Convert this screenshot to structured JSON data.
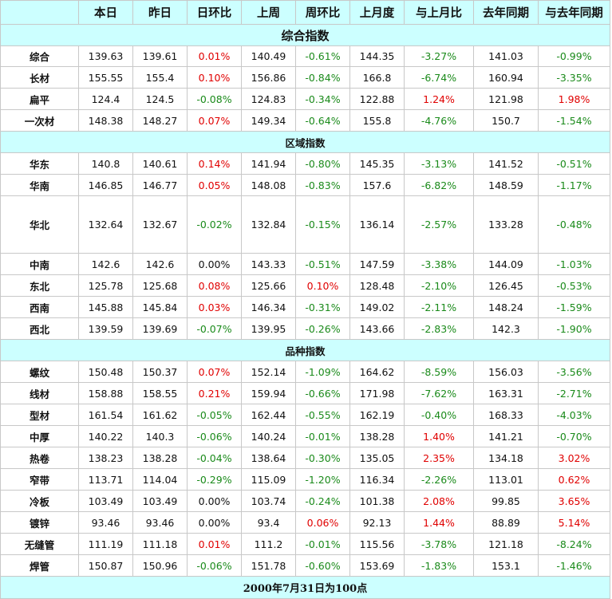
{
  "headers": [
    "",
    "本日",
    "昨日",
    "日环比",
    "上周",
    "周环比",
    "上月度",
    "与上月比",
    "去年同期",
    "与去年同期"
  ],
  "sections": [
    {
      "title": "综合指数",
      "size": "big",
      "rows": [
        {
          "name": "综合",
          "h": 26,
          "values": [
            "139.63",
            "139.61",
            "0.01%",
            "140.49",
            "-0.61%",
            "144.35",
            "-3.27%",
            "141.03",
            "-0.99%"
          ]
        },
        {
          "name": "长材",
          "h": 27,
          "values": [
            "155.55",
            "155.4",
            "0.10%",
            "156.86",
            "-0.84%",
            "166.8",
            "-6.74%",
            "160.94",
            "-3.35%"
          ]
        },
        {
          "name": "扁平",
          "h": 27,
          "values": [
            "124.4",
            "124.5",
            "-0.08%",
            "124.83",
            "-0.34%",
            "122.88",
            "1.24%",
            "121.98",
            "1.98%"
          ]
        },
        {
          "name": "一次材",
          "h": 27,
          "values": [
            "148.38",
            "148.27",
            "0.07%",
            "149.34",
            "-0.64%",
            "155.8",
            "-4.76%",
            "150.7",
            "-1.54%"
          ]
        }
      ]
    },
    {
      "title": "区域指数",
      "size": "small",
      "rows": [
        {
          "name": "华东",
          "h": 27,
          "values": [
            "140.8",
            "140.61",
            "0.14%",
            "141.94",
            "-0.80%",
            "145.35",
            "-3.13%",
            "141.52",
            "-0.51%"
          ]
        },
        {
          "name": "华南",
          "h": 27,
          "values": [
            "146.85",
            "146.77",
            "0.05%",
            "148.08",
            "-0.83%",
            "157.6",
            "-6.82%",
            "148.59",
            "-1.17%"
          ]
        },
        {
          "name": "华北",
          "h": 72,
          "values": [
            "132.64",
            "132.67",
            "-0.02%",
            "132.84",
            "-0.15%",
            "136.14",
            "-2.57%",
            "133.28",
            "-0.48%"
          ]
        },
        {
          "name": "中南",
          "h": 27,
          "values": [
            "142.6",
            "142.6",
            "0.00%",
            "143.33",
            "-0.51%",
            "147.59",
            "-3.38%",
            "144.09",
            "-1.03%"
          ]
        },
        {
          "name": "东北",
          "h": 27,
          "values": [
            "125.78",
            "125.68",
            "0.08%",
            "125.66",
            "0.10%",
            "128.48",
            "-2.10%",
            "126.45",
            "-0.53%"
          ]
        },
        {
          "name": "西南",
          "h": 27,
          "values": [
            "145.88",
            "145.84",
            "0.03%",
            "146.34",
            "-0.31%",
            "149.02",
            "-2.11%",
            "148.24",
            "-1.59%"
          ]
        },
        {
          "name": "西北",
          "h": 27,
          "values": [
            "139.59",
            "139.69",
            "-0.07%",
            "139.95",
            "-0.26%",
            "143.66",
            "-2.83%",
            "142.3",
            "-1.90%"
          ]
        }
      ]
    },
    {
      "title": "品种指数",
      "size": "small",
      "rows": [
        {
          "name": "螺纹",
          "h": 27,
          "values": [
            "150.48",
            "150.37",
            "0.07%",
            "152.14",
            "-1.09%",
            "164.62",
            "-8.59%",
            "156.03",
            "-3.56%"
          ]
        },
        {
          "name": "线材",
          "h": 27,
          "values": [
            "158.88",
            "158.55",
            "0.21%",
            "159.94",
            "-0.66%",
            "171.98",
            "-7.62%",
            "163.31",
            "-2.71%"
          ]
        },
        {
          "name": "型材",
          "h": 27,
          "values": [
            "161.54",
            "161.62",
            "-0.05%",
            "162.44",
            "-0.55%",
            "162.19",
            "-0.40%",
            "168.33",
            "-4.03%"
          ]
        },
        {
          "name": "中厚",
          "h": 27,
          "values": [
            "140.22",
            "140.3",
            "-0.06%",
            "140.24",
            "-0.01%",
            "138.28",
            "1.40%",
            "141.21",
            "-0.70%"
          ]
        },
        {
          "name": "热卷",
          "h": 27,
          "values": [
            "138.23",
            "138.28",
            "-0.04%",
            "138.64",
            "-0.30%",
            "135.05",
            "2.35%",
            "134.18",
            "3.02%"
          ]
        },
        {
          "name": "窄带",
          "h": 27,
          "values": [
            "113.71",
            "114.04",
            "-0.29%",
            "115.09",
            "-1.20%",
            "116.34",
            "-2.26%",
            "113.01",
            "0.62%"
          ]
        },
        {
          "name": "冷板",
          "h": 27,
          "values": [
            "103.49",
            "103.49",
            "0.00%",
            "103.74",
            "-0.24%",
            "101.38",
            "2.08%",
            "99.85",
            "3.65%"
          ]
        },
        {
          "name": "镀锌",
          "h": 27,
          "values": [
            "93.46",
            "93.46",
            "0.00%",
            "93.4",
            "0.06%",
            "92.13",
            "1.44%",
            "88.89",
            "5.14%"
          ]
        },
        {
          "name": "无缝管",
          "h": 27,
          "values": [
            "111.19",
            "111.18",
            "0.01%",
            "111.2",
            "-0.01%",
            "115.56",
            "-3.78%",
            "121.18",
            "-8.24%"
          ]
        },
        {
          "name": "焊管",
          "h": 27,
          "values": [
            "150.87",
            "150.96",
            "-0.06%",
            "151.78",
            "-0.60%",
            "153.69",
            "-1.83%",
            "153.1",
            "-1.46%"
          ]
        }
      ]
    }
  ],
  "footer": "2000年7月31日为100点",
  "colors": {
    "positive": "#e00000",
    "negative": "#1a8a1a",
    "header_bg": "#ccffff",
    "grid": "#c8c8c8"
  }
}
